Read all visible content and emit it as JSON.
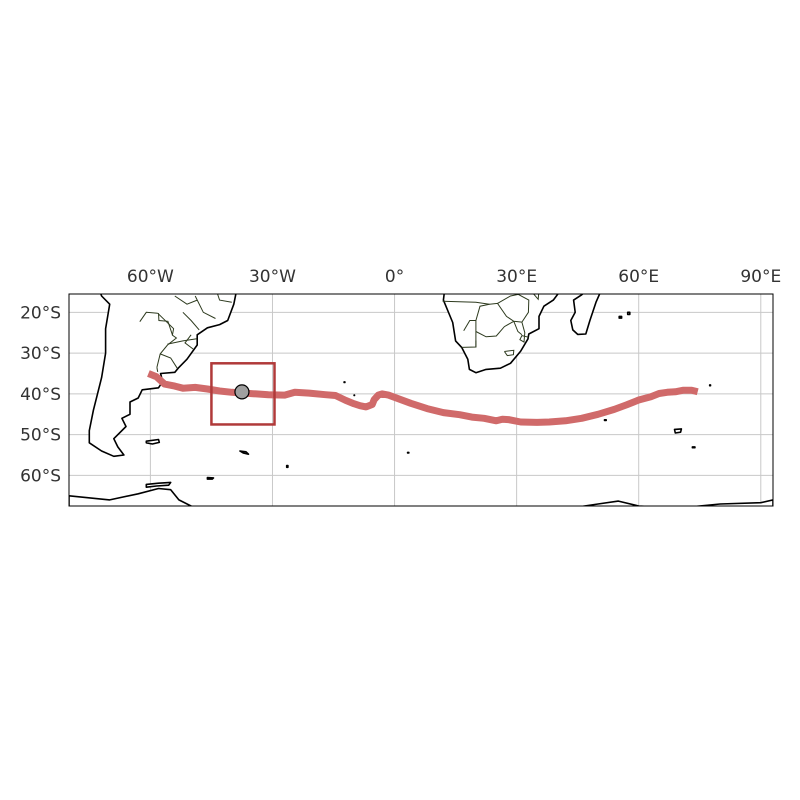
{
  "map": {
    "lon_range": [
      -80,
      93
    ],
    "lat_range": [
      -67.5,
      -15.5
    ],
    "gridlines": true,
    "x_ticks": [
      {
        "value": -60,
        "label": "60°W"
      },
      {
        "value": -30,
        "label": "30°W"
      },
      {
        "value": 0,
        "label": "0°"
      },
      {
        "value": 30,
        "label": "30°E"
      },
      {
        "value": 60,
        "label": "60°E"
      },
      {
        "value": 90,
        "label": "90°E"
      }
    ],
    "y_ticks": [
      {
        "value": -20,
        "label": "20°S"
      },
      {
        "value": -30,
        "label": "30°S"
      },
      {
        "value": -40,
        "label": "40°S"
      },
      {
        "value": -50,
        "label": "50°S"
      },
      {
        "value": -60,
        "label": "60°S"
      }
    ],
    "track_color": "#d06a6a",
    "box_color": "#b03a3a",
    "track": [
      [
        -60.5,
        -35.0
      ],
      [
        -58.5,
        -35.8
      ],
      [
        -56.5,
        -37.6
      ],
      [
        -54.0,
        -38.1
      ],
      [
        -52.0,
        -38.6
      ],
      [
        -49.0,
        -38.4
      ],
      [
        -46.0,
        -38.8
      ],
      [
        -43.0,
        -39.3
      ],
      [
        -40.0,
        -39.6
      ],
      [
        -37.0,
        -39.8
      ],
      [
        -34.0,
        -40.0
      ],
      [
        -31.0,
        -40.2
      ],
      [
        -27.0,
        -40.3
      ],
      [
        -24.5,
        -39.6
      ],
      [
        -21.0,
        -39.8
      ],
      [
        -17.0,
        -40.2
      ],
      [
        -14.5,
        -40.4
      ],
      [
        -12.0,
        -41.6
      ],
      [
        -10.0,
        -42.4
      ],
      [
        -8.5,
        -42.9
      ],
      [
        -7.0,
        -43.2
      ],
      [
        -5.5,
        -42.6
      ],
      [
        -5.0,
        -41.4
      ],
      [
        -4.0,
        -40.3
      ],
      [
        -3.0,
        -40.0
      ],
      [
        -1.5,
        -40.3
      ],
      [
        1.0,
        -41.2
      ],
      [
        4.0,
        -42.3
      ],
      [
        8.0,
        -43.6
      ],
      [
        12.0,
        -44.6
      ],
      [
        16.0,
        -45.1
      ],
      [
        19.0,
        -45.7
      ],
      [
        22.0,
        -46.0
      ],
      [
        25.0,
        -46.6
      ],
      [
        26.5,
        -46.2
      ],
      [
        28.0,
        -46.3
      ],
      [
        31.0,
        -46.9
      ],
      [
        35.0,
        -47.0
      ],
      [
        38.0,
        -46.9
      ],
      [
        42.0,
        -46.6
      ],
      [
        46.0,
        -46.0
      ],
      [
        50.0,
        -45.0
      ],
      [
        54.0,
        -43.8
      ],
      [
        57.0,
        -42.7
      ],
      [
        60.0,
        -41.5
      ],
      [
        63.0,
        -40.7
      ],
      [
        65.0,
        -39.9
      ],
      [
        67.0,
        -39.6
      ],
      [
        69.0,
        -39.5
      ],
      [
        71.0,
        -39.1
      ],
      [
        73.0,
        -39.1
      ],
      [
        74.5,
        -39.5
      ]
    ],
    "box": {
      "lon_min": -45,
      "lon_max": -29.5,
      "lat_min": -47.5,
      "lat_max": -32.5
    },
    "marker": {
      "lon": -37.5,
      "lat": -39.5
    },
    "land": {
      "south_america": [
        [
          -80,
          -4
        ],
        [
          -75,
          -8
        ],
        [
          -72,
          -16
        ],
        [
          -70,
          -18
        ],
        [
          -71,
          -24
        ],
        [
          -71,
          -30
        ],
        [
          -72,
          -36
        ],
        [
          -73,
          -40
        ],
        [
          -74,
          -44
        ],
        [
          -75,
          -49
        ],
        [
          -75,
          -52
        ],
        [
          -72,
          -54
        ],
        [
          -69,
          -55.3
        ],
        [
          -66.5,
          -55
        ],
        [
          -68,
          -53
        ],
        [
          -69,
          -51
        ],
        [
          -68,
          -50
        ],
        [
          -66,
          -48
        ],
        [
          -67,
          -46
        ],
        [
          -65,
          -45
        ],
        [
          -65,
          -42
        ],
        [
          -63,
          -41
        ],
        [
          -62,
          -39
        ],
        [
          -58,
          -38.5
        ],
        [
          -57,
          -37
        ],
        [
          -57.5,
          -35
        ],
        [
          -54,
          -34.7
        ],
        [
          -53,
          -33.5
        ],
        [
          -51,
          -31.5
        ],
        [
          -48.5,
          -28
        ],
        [
          -48.5,
          -25.5
        ],
        [
          -46,
          -23.8
        ],
        [
          -43,
          -23
        ],
        [
          -41,
          -22
        ],
        [
          -39.5,
          -18
        ],
        [
          -38.5,
          -13
        ],
        [
          -35,
          -8
        ],
        [
          -35,
          -5
        ],
        [
          -40,
          -3
        ],
        [
          -45,
          -1.5
        ],
        [
          -50,
          0
        ],
        [
          -80,
          0
        ]
      ],
      "africa": [
        [
          -20,
          0
        ],
        [
          9,
          0
        ],
        [
          9,
          -3
        ],
        [
          11.8,
          -5
        ],
        [
          13.2,
          -9
        ],
        [
          12.5,
          -13
        ],
        [
          12,
          -17
        ],
        [
          14.3,
          -22.5
        ],
        [
          15,
          -27
        ],
        [
          16.5,
          -28.6
        ],
        [
          18,
          -31.5
        ],
        [
          18.4,
          -34
        ],
        [
          20,
          -34.8
        ],
        [
          22.5,
          -34
        ],
        [
          26,
          -33.7
        ],
        [
          28.5,
          -32.5
        ],
        [
          31,
          -29.5
        ],
        [
          32.8,
          -26.5
        ],
        [
          33,
          -25.3
        ],
        [
          35.5,
          -24
        ],
        [
          35.5,
          -21
        ],
        [
          36.7,
          -18.5
        ],
        [
          39,
          -17
        ],
        [
          40.5,
          -15
        ],
        [
          40.5,
          -10
        ],
        [
          40,
          -4
        ],
        [
          41,
          -1
        ],
        [
          43,
          0
        ],
        [
          60,
          0
        ]
      ],
      "madagascar": [
        [
          49,
          -12
        ],
        [
          50.4,
          -15.5
        ],
        [
          49.5,
          -17.5
        ],
        [
          48,
          -22
        ],
        [
          47,
          -25.3
        ],
        [
          45,
          -25.4
        ],
        [
          43.8,
          -24.3
        ],
        [
          43.3,
          -22
        ],
        [
          44.4,
          -20
        ],
        [
          44,
          -17
        ],
        [
          46,
          -15.7
        ],
        [
          48,
          -14
        ]
      ],
      "falklands": [
        [
          -61,
          -51.6
        ],
        [
          -58,
          -51.2
        ],
        [
          -57.8,
          -51.9
        ],
        [
          -59.5,
          -52.3
        ],
        [
          -61,
          -52
        ]
      ],
      "kerguelen": [
        [
          68.8,
          -48.7
        ],
        [
          70.5,
          -48.6
        ],
        [
          70.3,
          -49.4
        ],
        [
          69,
          -49.6
        ]
      ],
      "south_georgia": [
        [
          -38,
          -54
        ],
        [
          -36.5,
          -54.2
        ],
        [
          -35.9,
          -54.8
        ],
        [
          -37.2,
          -54.5
        ]
      ],
      "antarctica": [
        [
          -80,
          -80
        ],
        [
          -80,
          -65
        ],
        [
          -70,
          -66
        ],
        [
          -63,
          -64.5
        ],
        [
          -58,
          -63.2
        ],
        [
          -55,
          -63.5
        ],
        [
          -53,
          -66
        ],
        [
          -45,
          -70
        ],
        [
          -20,
          -73
        ],
        [
          0,
          -70
        ],
        [
          20,
          -70
        ],
        [
          35,
          -69.5
        ],
        [
          40,
          -68.5
        ],
        [
          50,
          -67
        ],
        [
          55,
          -66.3
        ],
        [
          60,
          -67.5
        ],
        [
          70,
          -68
        ],
        [
          80,
          -67
        ],
        [
          90,
          -66.7
        ],
        [
          93,
          -66
        ],
        [
          93,
          -80
        ]
      ],
      "south_shetland": [
        [
          -61,
          -62.2
        ],
        [
          -58,
          -61.9
        ],
        [
          -55,
          -61.7
        ],
        [
          -55.5,
          -62.4
        ],
        [
          -58.5,
          -62.6
        ],
        [
          -61,
          -62.9
        ]
      ],
      "south_orkney": [
        [
          -46,
          -60.5
        ],
        [
          -44.5,
          -60.6
        ],
        [
          -44.8,
          -60.9
        ],
        [
          -46,
          -60.9
        ]
      ],
      "tristan": [
        [
          -12.4,
          -37.05
        ],
        [
          -12.2,
          -37.05
        ],
        [
          -12.2,
          -37.2
        ],
        [
          -12.4,
          -37.2
        ]
      ],
      "gough": [
        [
          -9.95,
          -40.3
        ],
        [
          -9.85,
          -40.3
        ],
        [
          -9.85,
          -40.4
        ],
        [
          -9.95,
          -40.4
        ]
      ],
      "crozet": [
        [
          51.6,
          -46.35
        ],
        [
          52,
          -46.35
        ],
        [
          52,
          -46.5
        ],
        [
          51.6,
          -46.5
        ]
      ],
      "amsterdam": [
        [
          77.45,
          -37.8
        ],
        [
          77.65,
          -37.8
        ],
        [
          77.65,
          -38
        ],
        [
          77.45,
          -38
        ]
      ],
      "mauritius": [
        [
          57.3,
          -20
        ],
        [
          57.8,
          -20
        ],
        [
          57.8,
          -20.5
        ],
        [
          57.3,
          -20.5
        ]
      ],
      "reunion": [
        [
          55.2,
          -21
        ],
        [
          55.8,
          -21
        ],
        [
          55.8,
          -21.4
        ],
        [
          55.2,
          -21.4
        ]
      ],
      "south_sandwich": [
        [
          -26.5,
          -57.6
        ],
        [
          -26.2,
          -57.6
        ],
        [
          -26.2,
          -58
        ],
        [
          -26.5,
          -58
        ]
      ],
      "bouvet": [
        [
          3.2,
          -54.35
        ],
        [
          3.5,
          -54.35
        ],
        [
          3.5,
          -54.5
        ],
        [
          3.2,
          -54.5
        ]
      ],
      "heard": [
        [
          73.2,
          -53
        ],
        [
          73.8,
          -53
        ],
        [
          73.8,
          -53.2
        ],
        [
          73.2,
          -53.2
        ]
      ]
    },
    "borders": [
      [
        [
          -58,
          -20.2
        ],
        [
          -57.9,
          -22
        ],
        [
          -55.7,
          -22.2
        ],
        [
          -54.6,
          -25.5
        ]
      ],
      [
        [
          -62.6,
          -22.3
        ],
        [
          -61,
          -20
        ],
        [
          -58.2,
          -20.2
        ]
      ],
      [
        [
          -58.2,
          -20.2
        ],
        [
          -54.3,
          -24
        ],
        [
          -54.6,
          -25.6
        ],
        [
          -53.6,
          -26.3
        ],
        [
          -55.8,
          -28
        ],
        [
          -57.6,
          -30.2
        ],
        [
          -58.4,
          -33.5
        ]
      ],
      [
        [
          -53.4,
          -33.7
        ],
        [
          -55,
          -31.2
        ],
        [
          -57.6,
          -30.2
        ]
      ],
      [
        [
          -58.4,
          -33.5
        ],
        [
          -58.2,
          -34.6
        ]
      ],
      [
        [
          -52,
          -20
        ],
        [
          -50,
          -22
        ],
        [
          -48,
          -24.3
        ]
      ],
      [
        [
          -49,
          -16
        ],
        [
          -47,
          -20
        ],
        [
          -44,
          -21.5
        ]
      ],
      [
        [
          -54,
          -16
        ],
        [
          -51,
          -18
        ],
        [
          -48.5,
          -17
        ]
      ],
      [
        [
          -44,
          -14
        ],
        [
          -43,
          -17
        ],
        [
          -40,
          -17.5
        ]
      ],
      [
        [
          -50,
          -25.5
        ],
        [
          -51.5,
          -27.5
        ],
        [
          -49.5,
          -29
        ]
      ],
      [
        [
          -55.8,
          -27.8
        ],
        [
          -52,
          -27
        ],
        [
          -48.6,
          -26.5
        ]
      ],
      [
        [
          11.8,
          -17.3
        ],
        [
          20,
          -17.5
        ],
        [
          23.3,
          -18
        ]
      ],
      [
        [
          20,
          -22
        ],
        [
          20,
          -26.9
        ],
        [
          20,
          -28.6
        ]
      ],
      [
        [
          20,
          -22
        ],
        [
          21,
          -18.5
        ],
        [
          23.3,
          -18
        ],
        [
          25.3,
          -17.8
        ],
        [
          27.5,
          -21
        ],
        [
          29.3,
          -22.2
        ],
        [
          31.3,
          -22.4
        ]
      ],
      [
        [
          20,
          -24.7
        ],
        [
          22.5,
          -26
        ],
        [
          25,
          -25.8
        ],
        [
          27,
          -23.5
        ],
        [
          29.3,
          -22.2
        ]
      ],
      [
        [
          16.5,
          -28.6
        ],
        [
          20,
          -28.5
        ],
        [
          20,
          -26.9
        ]
      ],
      [
        [
          31.3,
          -22.4
        ],
        [
          32,
          -25
        ],
        [
          31.8,
          -27.3
        ],
        [
          30.8,
          -26.7
        ],
        [
          31.3,
          -25.7
        ],
        [
          32.9,
          -26.1
        ]
      ],
      [
        [
          25.3,
          -17.8
        ],
        [
          28.5,
          -16
        ],
        [
          30.4,
          -15.6
        ],
        [
          33,
          -17
        ],
        [
          32.9,
          -20
        ],
        [
          31.3,
          -22.4
        ]
      ],
      [
        [
          32,
          -11
        ],
        [
          33.3,
          -14.5
        ],
        [
          35.3,
          -16.8
        ],
        [
          35.5,
          -14.5
        ],
        [
          34.6,
          -12
        ]
      ],
      [
        [
          21.9,
          -12
        ],
        [
          24,
          -13
        ],
        [
          26,
          -13.5
        ],
        [
          28.5,
          -15
        ],
        [
          30.4,
          -15.6
        ]
      ],
      [
        [
          27,
          -29.6
        ],
        [
          29.3,
          -29.3
        ],
        [
          29.2,
          -30.4
        ],
        [
          27.7,
          -30.6
        ],
        [
          27,
          -29.6
        ]
      ],
      [
        [
          17,
          -24.5
        ],
        [
          18.5,
          -22
        ],
        [
          20,
          -22
        ]
      ],
      [
        [
          29.3,
          -22.2
        ],
        [
          30.3,
          -24.7
        ],
        [
          31.3,
          -25.5
        ]
      ]
    ]
  }
}
